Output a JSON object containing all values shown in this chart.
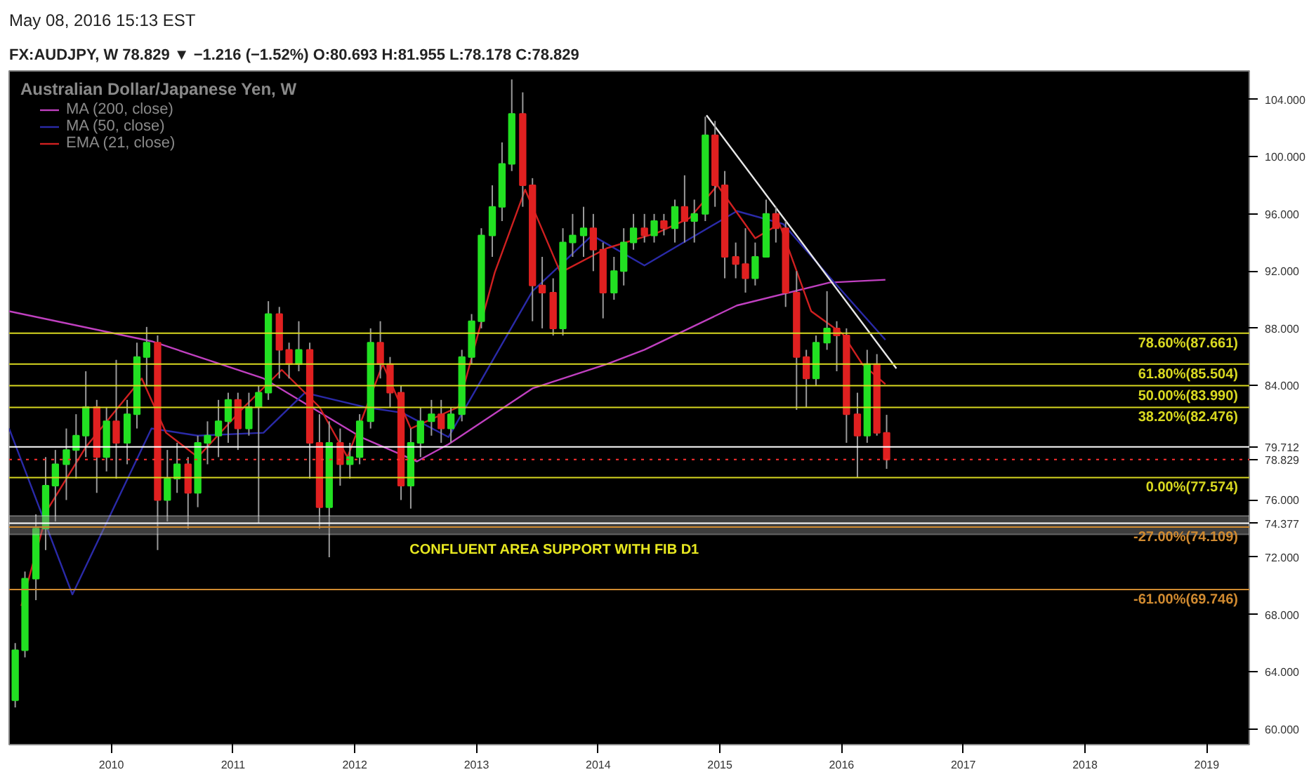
{
  "chart_data": {
    "type": "candlestick",
    "title": "Australian Dollar/Japanese Yen, W",
    "subtitle": "FX:AUDJPY, W  78.829 ▼ −1.216 (−1.52%) O:80.693 H:81.955 L:78.178 C:78.829",
    "annotations": [
      "May 08, 2016 15:13 EST"
    ],
    "x": [
      2009.21,
      2009.29,
      2009.38,
      2009.46,
      2009.54,
      2009.63,
      2009.71,
      2009.79,
      2009.88,
      2009.96,
      2010.04,
      2010.13,
      2010.21,
      2010.29,
      2010.38,
      2010.46,
      2010.54,
      2010.63,
      2010.71,
      2010.79,
      2010.88,
      2010.96,
      2011.04,
      2011.13,
      2011.21,
      2011.29,
      2011.38,
      2011.46,
      2011.54,
      2011.63,
      2011.71,
      2011.79,
      2011.88,
      2011.96,
      2012.04,
      2012.13,
      2012.21,
      2012.29,
      2012.38,
      2012.46,
      2012.54,
      2012.63,
      2012.71,
      2012.79,
      2012.88,
      2012.96,
      2013.04,
      2013.13,
      2013.21,
      2013.29,
      2013.38,
      2013.46,
      2013.54,
      2013.63,
      2013.71,
      2013.79,
      2013.88,
      2013.96,
      2014.04,
      2014.13,
      2014.21,
      2014.29,
      2014.38,
      2014.46,
      2014.54,
      2014.63,
      2014.71,
      2014.79,
      2014.88,
      2014.96,
      2015.04,
      2015.13,
      2015.21,
      2015.29,
      2015.38,
      2015.46,
      2015.54,
      2015.63,
      2015.71,
      2015.79,
      2015.88,
      2015.96,
      2016.04,
      2016.13,
      2016.21,
      2016.29,
      2016.37
    ],
    "ohlc": [
      [
        62,
        66,
        61.5,
        65.5
      ],
      [
        65.5,
        71,
        65,
        70.5
      ],
      [
        70.5,
        75,
        69,
        74
      ],
      [
        74,
        79,
        72.5,
        77
      ],
      [
        77,
        79.5,
        74.5,
        78.5
      ],
      [
        78.5,
        81,
        76,
        79.5
      ],
      [
        79.5,
        82,
        77.5,
        80.5
      ],
      [
        80.5,
        85,
        79,
        82.5
      ],
      [
        82.5,
        83,
        76.5,
        79
      ],
      [
        79,
        82.5,
        78,
        81.5
      ],
      [
        81.5,
        85.8,
        77.5,
        80
      ],
      [
        80,
        83,
        78.5,
        82
      ],
      [
        82,
        87,
        81,
        86
      ],
      [
        86,
        88.1,
        84,
        87
      ],
      [
        87,
        87.5,
        72.5,
        76
      ],
      [
        76,
        79.5,
        74.5,
        77.5
      ],
      [
        77.5,
        80,
        76.5,
        78.5
      ],
      [
        78.5,
        79,
        74,
        76.5
      ],
      [
        76.5,
        80.5,
        75.5,
        80
      ],
      [
        80,
        81.5,
        78.5,
        80.5
      ],
      [
        80.5,
        83,
        79,
        81.5
      ],
      [
        81.5,
        83.5,
        80,
        83
      ],
      [
        83,
        83.5,
        79.5,
        81
      ],
      [
        81,
        83.5,
        80.5,
        82.5
      ],
      [
        82.5,
        84,
        74.4,
        83.5
      ],
      [
        83.5,
        89.9,
        83,
        89
      ],
      [
        89,
        89.5,
        84.5,
        86.5
      ],
      [
        86.5,
        87,
        84.5,
        85.5
      ],
      [
        85.5,
        88.5,
        85,
        86.5
      ],
      [
        86.5,
        87,
        77.5,
        80
      ],
      [
        80,
        82,
        74,
        75.5
      ],
      [
        75.5,
        81.5,
        72,
        80
      ],
      [
        80,
        81,
        77,
        78.5
      ],
      [
        78.5,
        80,
        77.5,
        79
      ],
      [
        79,
        82,
        78.5,
        81.5
      ],
      [
        81.5,
        88,
        81,
        87
      ],
      [
        87,
        88.5,
        84.5,
        85.5
      ],
      [
        85.5,
        86,
        82.5,
        83.5
      ],
      [
        83.5,
        84,
        76,
        77
      ],
      [
        77,
        81,
        75.4,
        80
      ],
      [
        80,
        82.5,
        79,
        81.5
      ],
      [
        81.5,
        83,
        80.5,
        82
      ],
      [
        82,
        83,
        80,
        81
      ],
      [
        81,
        82.5,
        80,
        82
      ],
      [
        82,
        86.5,
        81.5,
        86
      ],
      [
        86,
        89,
        85.5,
        88.5
      ],
      [
        88.5,
        95,
        88,
        94.5
      ],
      [
        94.5,
        98,
        93,
        96.5
      ],
      [
        96.5,
        101,
        95.5,
        99.5
      ],
      [
        99.5,
        105.4,
        99,
        103
      ],
      [
        103,
        104.5,
        96.5,
        98
      ],
      [
        98,
        98.5,
        88.5,
        91
      ],
      [
        91,
        93,
        88,
        90.5
      ],
      [
        90.5,
        91.5,
        87.5,
        88
      ],
      [
        88,
        95,
        87.5,
        94
      ],
      [
        94,
        96,
        93,
        94.5
      ],
      [
        94.5,
        96.5,
        93,
        95
      ],
      [
        95,
        96,
        92,
        93.5
      ],
      [
        93.5,
        94,
        88.7,
        90.5
      ],
      [
        90.5,
        93,
        90,
        92
      ],
      [
        92,
        95,
        91,
        94
      ],
      [
        94,
        96,
        93.5,
        95
      ],
      [
        95,
        96,
        94,
        94.5
      ],
      [
        94.5,
        96,
        94,
        95.5
      ],
      [
        95.5,
        96,
        94.5,
        95
      ],
      [
        95,
        97,
        94,
        96.5
      ],
      [
        96.5,
        98.7,
        94,
        95.5
      ],
      [
        95.5,
        97,
        94,
        96
      ],
      [
        96,
        102.8,
        95.5,
        101.5
      ],
      [
        101.5,
        102.5,
        96.5,
        98
      ],
      [
        98,
        99,
        91.5,
        93
      ],
      [
        93,
        94,
        91.5,
        92.5
      ],
      [
        92.5,
        95,
        90.5,
        91.5
      ],
      [
        91.5,
        94,
        91,
        93
      ],
      [
        93,
        97,
        93,
        96
      ],
      [
        96,
        96.5,
        94,
        95
      ],
      [
        95,
        95.5,
        89.5,
        90.5
      ],
      [
        90.5,
        92,
        82.3,
        86
      ],
      [
        86,
        86.5,
        82.5,
        84.5
      ],
      [
        84.5,
        87.5,
        84,
        87
      ],
      [
        87,
        90.6,
        86.5,
        88
      ],
      [
        88,
        88.5,
        85,
        87.5
      ],
      [
        87.5,
        88,
        80,
        82
      ],
      [
        82,
        83.5,
        77.574,
        80.5
      ],
      [
        80.5,
        86.5,
        80,
        85.5
      ],
      [
        85.5,
        86.2,
        80.5,
        80.693
      ],
      [
        80.693,
        81.955,
        78.178,
        78.829
      ]
    ],
    "colors": [
      "#22e022",
      "#22e022",
      "#22e022",
      "#22e022",
      "#22e022",
      "#22e022",
      "#22e022",
      "#22e022",
      "#e02020",
      "#22e022",
      "#e02020",
      "#22e022",
      "#22e022",
      "#22e022",
      "#e02020",
      "#22e022",
      "#22e022",
      "#e02020",
      "#22e022",
      "#22e022",
      "#22e022",
      "#22e022",
      "#e02020",
      "#22e022",
      "#22e022",
      "#22e022",
      "#e02020",
      "#e02020",
      "#22e022",
      "#e02020",
      "#e02020",
      "#22e022",
      "#e02020",
      "#22e022",
      "#22e022",
      "#22e022",
      "#e02020",
      "#e02020",
      "#e02020",
      "#22e022",
      "#22e022",
      "#22e022",
      "#e02020",
      "#22e022",
      "#22e022",
      "#22e022",
      "#22e022",
      "#22e022",
      "#22e022",
      "#22e022",
      "#e02020",
      "#e02020",
      "#e02020",
      "#e02020",
      "#22e022",
      "#22e022",
      "#22e022",
      "#e02020",
      "#e02020",
      "#22e022",
      "#22e022",
      "#22e022",
      "#e02020",
      "#22e022",
      "#e02020",
      "#22e022",
      "#e02020",
      "#22e022",
      "#22e022",
      "#e02020",
      "#e02020",
      "#e02020",
      "#e02020",
      "#22e022",
      "#22e022",
      "#e02020",
      "#e02020",
      "#e02020",
      "#e02020",
      "#22e022",
      "#22e022",
      "#e02020",
      "#e02020",
      "#e02020",
      "#22e022",
      "#e02020",
      "#e02020"
    ],
    "series": [
      {
        "name": "MA (200, close)",
        "type": "line",
        "color": "#c040c0",
        "x": [
          2009.16,
          2010.33,
          2011.25,
          2012.05,
          2012.51,
          2012.77,
          2013.46,
          2014.07,
          2014.38,
          2015.14,
          2015.9,
          2016.36
        ],
        "values": [
          89.2,
          87.1,
          84.5,
          80.4,
          78.7,
          79.9,
          83.8,
          85.5,
          86.5,
          89.6,
          91.2,
          91.4
        ]
      },
      {
        "name": "MA (50, close)",
        "type": "line",
        "color": "#2a2aa8",
        "x": [
          2009.16,
          2009.68,
          2010.33,
          2010.71,
          2011.25,
          2011.59,
          2012.08,
          2012.39,
          2012.77,
          2013.46,
          2013.95,
          2014.38,
          2015.14,
          2015.52,
          2015.9,
          2016.36
        ],
        "values": [
          81,
          69.4,
          81,
          80.5,
          80.7,
          83.5,
          82.5,
          82.1,
          80.4,
          90.6,
          94.5,
          92.4,
          96.2,
          95.3,
          91.6,
          87.2
        ]
      },
      {
        "name": "EMA (21, close)",
        "type": "line",
        "color": "#d02020",
        "x": [
          2009.26,
          2009.48,
          2009.79,
          2010.25,
          2010.45,
          2010.71,
          2011.09,
          2011.4,
          2011.71,
          2011.94,
          2012.23,
          2012.46,
          2012.85,
          2013.15,
          2013.4,
          2013.69,
          2014.07,
          2014.49,
          2014.75,
          2014.98,
          2015.29,
          2015.49,
          2015.75,
          2016.01,
          2016.17,
          2016.36
        ],
        "values": [
          68.6,
          75.4,
          79.7,
          84.5,
          80.7,
          79,
          82.5,
          85.1,
          82.5,
          79,
          85.5,
          81,
          82.5,
          91.9,
          97.7,
          91.9,
          93.6,
          94.7,
          95.7,
          98,
          94.3,
          95.3,
          89.2,
          87.6,
          85.5,
          84.1
        ]
      },
      {
        "type": "line",
        "color": "#e8e8e8",
        "x": [
          2014.89,
          2016.45
        ],
        "values": [
          102.9,
          85.2
        ]
      }
    ],
    "ref_lines": [
      {
        "axis": "y",
        "value": 87.661,
        "label": "78.60%(87.661)",
        "color": "#d8d820"
      },
      {
        "axis": "y",
        "value": 85.504,
        "label": "61.80%(85.504)",
        "color": "#d8d820"
      },
      {
        "axis": "y",
        "value": 83.99,
        "label": "50.00%(83.990)",
        "color": "#d8d820"
      },
      {
        "axis": "y",
        "value": 82.476,
        "label": "38.20%(82.476)",
        "color": "#d8d820"
      },
      {
        "axis": "y",
        "value": 77.574,
        "label": "0.00%(77.574)",
        "color": "#d8d820"
      },
      {
        "axis": "y",
        "value": 74.109,
        "label": "-27.00%(74.109)",
        "color": "#d08a30"
      },
      {
        "axis": "y",
        "value": 69.746,
        "label": "-61.00%(69.746)",
        "color": "#d08a30"
      },
      {
        "axis": "y",
        "value": 79.712,
        "color": "#ffffff"
      },
      {
        "axis": "y",
        "value": 78.829,
        "color": "#ff3030",
        "line_style": "dotted"
      },
      {
        "axis": "y",
        "value": 74.377,
        "color": "#ffffff"
      }
    ],
    "bands": [
      {
        "axis": "y",
        "from": 73.6,
        "to": 74.9,
        "label": "CONFLUENT AREA SUPPORT WITH FIB D1",
        "color": "#888888"
      }
    ],
    "xlim": [
      2009.16,
      2019.35
    ],
    "ylim": [
      58.9,
      106
    ],
    "xticks": [
      2010,
      2011,
      2012,
      2013,
      2014,
      2015,
      2016,
      2017,
      2018,
      2019
    ],
    "yticks": [
      {
        "value": 60,
        "label": "60.000"
      },
      {
        "value": 64,
        "label": "64.000"
      },
      {
        "value": 68,
        "label": "68.000"
      },
      {
        "value": 72,
        "label": "72.000"
      },
      {
        "value": 74.377,
        "label": "74.377"
      },
      {
        "value": 76,
        "label": "76.000"
      },
      {
        "value": 78.829,
        "label": "78.829"
      },
      {
        "value": 79.712,
        "label": "79.712"
      },
      {
        "value": 84,
        "label": "84.000"
      },
      {
        "value": 88,
        "label": "88.000"
      },
      {
        "value": 92,
        "label": "92.000"
      },
      {
        "value": 96,
        "label": "96.000"
      },
      {
        "value": 100,
        "label": "100.000"
      },
      {
        "value": 104,
        "label": "104.000"
      }
    ],
    "grid": false,
    "legend": "top left"
  }
}
